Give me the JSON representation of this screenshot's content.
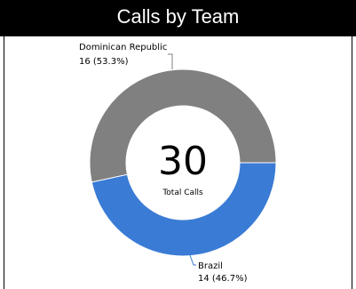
{
  "title": "Calls by Team",
  "chart_data": {
    "type": "pie",
    "title": "Calls by Team",
    "donut": true,
    "total": 30,
    "total_label": "Total Calls",
    "slices": [
      {
        "name": "Dominican Republic",
        "value": 16,
        "percent": 53.3,
        "label_text": "16 (53.3%)",
        "color": "#808080"
      },
      {
        "name": "Brazil",
        "value": 14,
        "percent": 46.7,
        "label_text": "14 (46.7%)",
        "color": "#3a7bd5"
      }
    ],
    "legend": "none"
  }
}
